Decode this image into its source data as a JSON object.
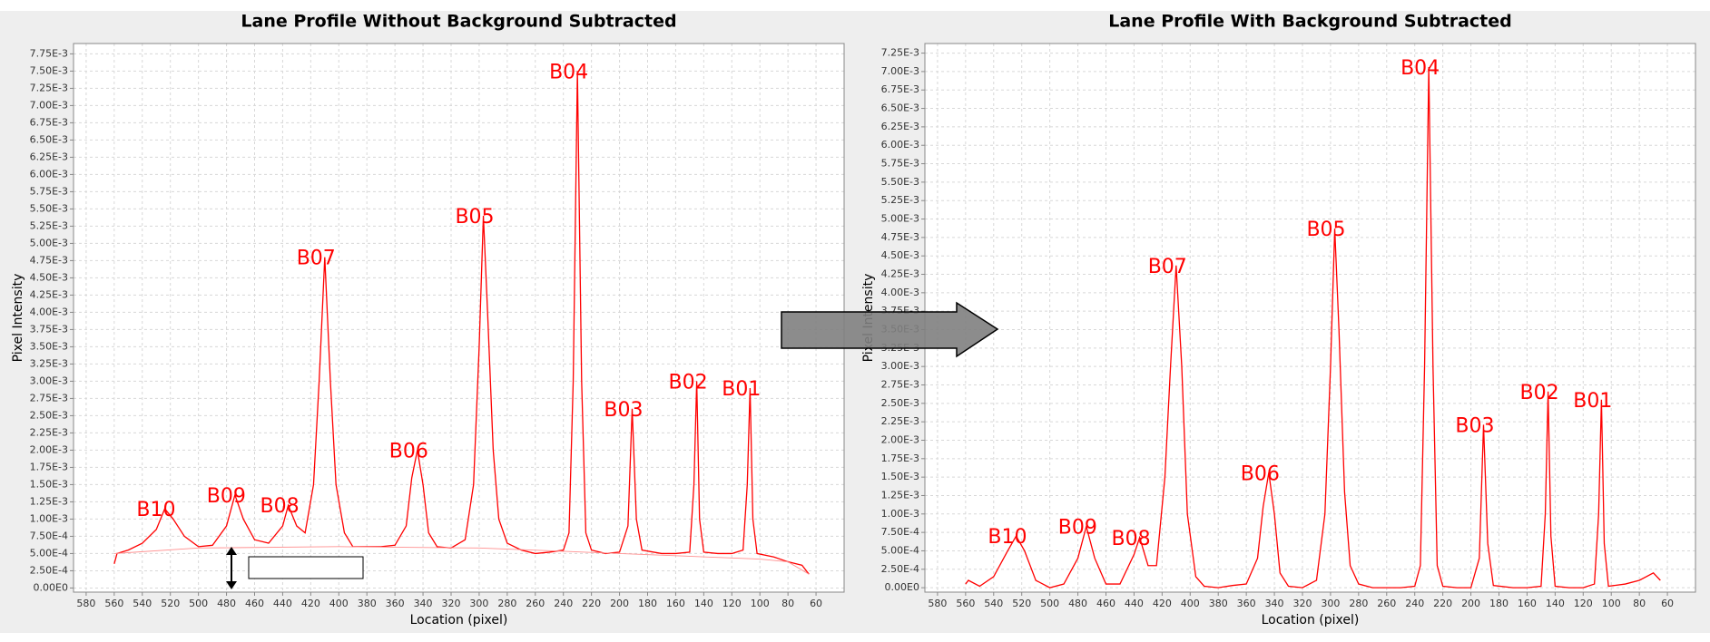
{
  "chart_data": [
    {
      "type": "line",
      "title": "Lane Profile Without Background Subtracted",
      "xlabel": "Location (pixel)",
      "ylabel": "Pixel Intensity",
      "xlim": [
        589,
        40
      ],
      "xticks": [
        580,
        560,
        540,
        520,
        500,
        480,
        460,
        440,
        420,
        400,
        380,
        360,
        340,
        320,
        300,
        280,
        260,
        240,
        220,
        200,
        180,
        160,
        140,
        120,
        100,
        80,
        60
      ],
      "ylim": [
        -6e-05,
        0.0079
      ],
      "yticks": [
        {
          "value": 0,
          "label": "0.00E0"
        },
        {
          "value": 0.00025,
          "label": "2.50E-4"
        },
        {
          "value": 0.0005,
          "label": "5.00E-4"
        },
        {
          "value": 0.00075,
          "label": "7.50E-4"
        },
        {
          "value": 0.001,
          "label": "1.00E-3"
        },
        {
          "value": 0.00125,
          "label": "1.25E-3"
        },
        {
          "value": 0.0015,
          "label": "1.50E-3"
        },
        {
          "value": 0.00175,
          "label": "1.75E-3"
        },
        {
          "value": 0.002,
          "label": "2.00E-3"
        },
        {
          "value": 0.00225,
          "label": "2.25E-3"
        },
        {
          "value": 0.0025,
          "label": "2.50E-3"
        },
        {
          "value": 0.00275,
          "label": "2.75E-3"
        },
        {
          "value": 0.003,
          "label": "3.00E-3"
        },
        {
          "value": 0.00325,
          "label": "3.25E-3"
        },
        {
          "value": 0.0035,
          "label": "3.50E-3"
        },
        {
          "value": 0.00375,
          "label": "3.75E-3"
        },
        {
          "value": 0.004,
          "label": "4.00E-3"
        },
        {
          "value": 0.00425,
          "label": "4.25E-3"
        },
        {
          "value": 0.0045,
          "label": "4.50E-3"
        },
        {
          "value": 0.00475,
          "label": "4.75E-3"
        },
        {
          "value": 0.005,
          "label": "5.00E-3"
        },
        {
          "value": 0.00525,
          "label": "5.25E-3"
        },
        {
          "value": 0.0055,
          "label": "5.50E-3"
        },
        {
          "value": 0.00575,
          "label": "5.75E-3"
        },
        {
          "value": 0.006,
          "label": "6.00E-3"
        },
        {
          "value": 0.00625,
          "label": "6.25E-3"
        },
        {
          "value": 0.0065,
          "label": "6.50E-3"
        },
        {
          "value": 0.00675,
          "label": "6.75E-3"
        },
        {
          "value": 0.007,
          "label": "7.00E-3"
        },
        {
          "value": 0.00725,
          "label": "7.25E-3"
        },
        {
          "value": 0.0075,
          "label": "7.50E-3"
        },
        {
          "value": 0.00775,
          "label": "7.75E-3"
        }
      ],
      "grid": true,
      "series": [
        {
          "color": "#ff0000",
          "x": [
            560,
            558,
            550,
            540,
            530,
            524,
            518,
            510,
            500,
            490,
            480,
            474,
            468,
            460,
            450,
            440,
            436,
            430,
            424,
            418,
            414,
            410,
            406,
            402,
            396,
            390,
            380,
            370,
            360,
            352,
            348,
            344,
            340,
            336,
            330,
            320,
            310,
            304,
            300,
            297,
            294,
            290,
            286,
            280,
            270,
            260,
            250,
            240,
            236,
            233,
            230,
            227,
            224,
            220,
            210,
            200,
            194,
            191,
            188,
            184,
            170,
            160,
            150,
            147,
            145,
            143,
            140,
            130,
            120,
            112,
            109,
            107,
            105,
            102,
            90,
            80,
            70,
            65
          ],
          "values": [
            0.00035,
            0.0005,
            0.00055,
            0.00065,
            0.00085,
            0.00115,
            0.001,
            0.00075,
            0.0006,
            0.00062,
            0.0009,
            0.00135,
            0.001,
            0.0007,
            0.00065,
            0.0009,
            0.0012,
            0.0009,
            0.0008,
            0.0015,
            0.003,
            0.0048,
            0.003,
            0.0015,
            0.0008,
            0.0006,
            0.0006,
            0.0006,
            0.00062,
            0.0009,
            0.0016,
            0.002,
            0.0015,
            0.0008,
            0.0006,
            0.00058,
            0.0007,
            0.0015,
            0.0035,
            0.0054,
            0.004,
            0.002,
            0.001,
            0.00065,
            0.00055,
            0.0005,
            0.00052,
            0.00055,
            0.0008,
            0.003,
            0.0075,
            0.003,
            0.0008,
            0.00055,
            0.0005,
            0.00052,
            0.0009,
            0.0026,
            0.001,
            0.00055,
            0.0005,
            0.0005,
            0.00052,
            0.0015,
            0.003,
            0.001,
            0.00052,
            0.0005,
            0.0005,
            0.00055,
            0.0015,
            0.0029,
            0.001,
            0.0005,
            0.00045,
            0.00038,
            0.00033,
            0.0002
          ]
        },
        {
          "color": "#ff9090",
          "x": [
            560,
            500,
            400,
            300,
            200,
            100,
            80,
            65
          ],
          "values": [
            0.0005,
            0.00058,
            0.0006,
            0.00058,
            0.0005,
            0.00042,
            0.00038,
            0.0002
          ]
        }
      ],
      "annotations": [
        {
          "text": "B10",
          "x": 524,
          "y": 0.00115
        },
        {
          "text": "B09",
          "x": 474,
          "y": 0.00135
        },
        {
          "text": "B08",
          "x": 436,
          "y": 0.0012
        },
        {
          "text": "B07",
          "x": 410,
          "y": 0.0048
        },
        {
          "text": "B06",
          "x": 344,
          "y": 0.002
        },
        {
          "text": "B05",
          "x": 297,
          "y": 0.0054
        },
        {
          "text": "B04",
          "x": 230,
          "y": 0.0075
        },
        {
          "text": "B03",
          "x": 191,
          "y": 0.0026
        },
        {
          "text": "B02",
          "x": 145,
          "y": 0.003
        },
        {
          "text": "B01",
          "x": 107,
          "y": 0.0029
        }
      ]
    },
    {
      "type": "line",
      "title": "Lane Profile With Background Subtracted",
      "xlabel": "Location (pixel)",
      "ylabel": "Pixel Intensity",
      "xlim": [
        589,
        40
      ],
      "xticks": [
        580,
        560,
        540,
        520,
        500,
        480,
        460,
        440,
        420,
        400,
        380,
        360,
        340,
        320,
        300,
        280,
        260,
        240,
        220,
        200,
        180,
        160,
        140,
        120,
        100,
        80,
        60
      ],
      "ylim": [
        -6e-05,
        0.00738
      ],
      "yticks": [
        {
          "value": 0,
          "label": "0.00E0"
        },
        {
          "value": 0.00025,
          "label": "2.50E-4"
        },
        {
          "value": 0.0005,
          "label": "5.00E-4"
        },
        {
          "value": 0.00075,
          "label": "7.50E-4"
        },
        {
          "value": 0.001,
          "label": "1.00E-3"
        },
        {
          "value": 0.00125,
          "label": "1.25E-3"
        },
        {
          "value": 0.0015,
          "label": "1.50E-3"
        },
        {
          "value": 0.00175,
          "label": "1.75E-3"
        },
        {
          "value": 0.002,
          "label": "2.00E-3"
        },
        {
          "value": 0.00225,
          "label": "2.25E-3"
        },
        {
          "value": 0.0025,
          "label": "2.50E-3"
        },
        {
          "value": 0.00275,
          "label": "2.75E-3"
        },
        {
          "value": 0.003,
          "label": "3.00E-3"
        },
        {
          "value": 0.00325,
          "label": "3.25E-3"
        },
        {
          "value": 0.0035,
          "label": "3.50E-3"
        },
        {
          "value": 0.00375,
          "label": "3.75E-3"
        },
        {
          "value": 0.004,
          "label": "4.00E-3"
        },
        {
          "value": 0.00425,
          "label": "4.25E-3"
        },
        {
          "value": 0.0045,
          "label": "4.50E-3"
        },
        {
          "value": 0.00475,
          "label": "4.75E-3"
        },
        {
          "value": 0.005,
          "label": "5.00E-3"
        },
        {
          "value": 0.00525,
          "label": "5.25E-3"
        },
        {
          "value": 0.0055,
          "label": "5.50E-3"
        },
        {
          "value": 0.00575,
          "label": "5.75E-3"
        },
        {
          "value": 0.006,
          "label": "6.00E-3"
        },
        {
          "value": 0.00625,
          "label": "6.25E-3"
        },
        {
          "value": 0.0065,
          "label": "6.50E-3"
        },
        {
          "value": 0.00675,
          "label": "6.75E-3"
        },
        {
          "value": 0.007,
          "label": "7.00E-3"
        },
        {
          "value": 0.00725,
          "label": "7.25E-3"
        }
      ],
      "grid": true,
      "series": [
        {
          "color": "#ff0000",
          "x": [
            560,
            558,
            550,
            540,
            530,
            524,
            518,
            510,
            500,
            490,
            480,
            474,
            468,
            460,
            450,
            440,
            436,
            430,
            424,
            418,
            414,
            410,
            406,
            402,
            396,
            390,
            380,
            370,
            360,
            352,
            348,
            344,
            340,
            336,
            330,
            320,
            310,
            304,
            300,
            297,
            294,
            290,
            286,
            280,
            270,
            260,
            250,
            240,
            236,
            233,
            230,
            227,
            224,
            220,
            210,
            200,
            194,
            191,
            188,
            184,
            170,
            160,
            150,
            147,
            145,
            143,
            140,
            130,
            120,
            112,
            109,
            107,
            105,
            102,
            90,
            80,
            70,
            65
          ],
          "values": [
            5e-05,
            0.0001,
            2e-05,
            0.00015,
            0.0005,
            0.0007,
            0.0005,
            0.0001,
            0,
            5e-05,
            0.0004,
            0.00083,
            0.0004,
            5e-05,
            5e-05,
            0.00045,
            0.00068,
            0.0003,
            0.0003,
            0.0015,
            0.003,
            0.00437,
            0.003,
            0.001,
            0.00015,
            2e-05,
            0,
            3e-05,
            5e-05,
            0.0004,
            0.0011,
            0.00156,
            0.001,
            0.0002,
            2e-05,
            0,
            0.0001,
            0.001,
            0.003,
            0.00487,
            0.0035,
            0.0013,
            0.0003,
            5e-05,
            0,
            0,
            0,
            2e-05,
            0.0003,
            0.003,
            0.00706,
            0.003,
            0.0003,
            2e-05,
            0,
            0,
            0.0004,
            0.00221,
            0.0006,
            3e-05,
            0,
            0,
            2e-05,
            0.001,
            0.00266,
            0.0007,
            2e-05,
            0,
            0,
            5e-05,
            0.001,
            0.00255,
            0.0006,
            2e-05,
            5e-05,
            0.0001,
            0.0002,
            0.0001
          ]
        }
      ],
      "annotations": [
        {
          "text": "B10",
          "x": 524,
          "y": 0.0007
        },
        {
          "text": "B09",
          "x": 474,
          "y": 0.00083
        },
        {
          "text": "B08",
          "x": 436,
          "y": 0.00068
        },
        {
          "text": "B07",
          "x": 410,
          "y": 0.00437
        },
        {
          "text": "B06",
          "x": 344,
          "y": 0.00156
        },
        {
          "text": "B05",
          "x": 297,
          "y": 0.00487
        },
        {
          "text": "B04",
          "x": 230,
          "y": 0.00706
        },
        {
          "text": "B03",
          "x": 191,
          "y": 0.00221
        },
        {
          "text": "B02",
          "x": 145,
          "y": 0.00266
        },
        {
          "text": "B01",
          "x": 107,
          "y": 0.00255
        }
      ]
    }
  ]
}
